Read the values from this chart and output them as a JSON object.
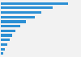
{
  "values": [
    100,
    77,
    60,
    50,
    37,
    29,
    22,
    17,
    13,
    9,
    6,
    3
  ],
  "bar_color": "#2b8fd4",
  "background_color": "#f2f2f2",
  "plot_bg_color": "#f2f2f2",
  "grid_color": "#ffffff",
  "n_bars": 12
}
